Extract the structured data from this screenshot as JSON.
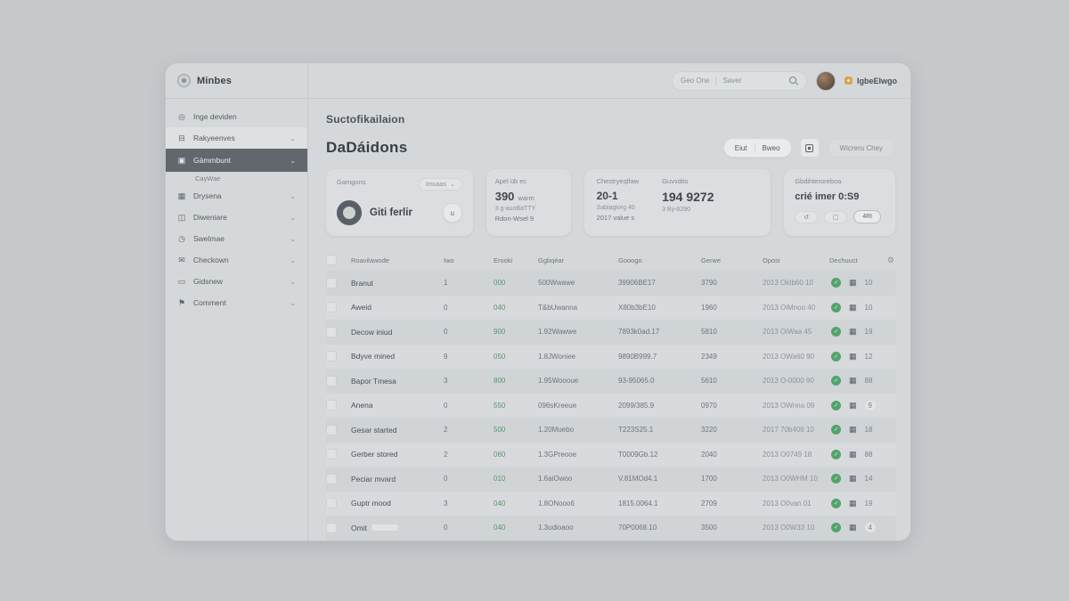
{
  "sidebar": {
    "logo": {
      "label": "Minbes"
    },
    "items": [
      {
        "label": "Inge deviden",
        "icon": "target-icon",
        "chevron": false,
        "state": "normal"
      },
      {
        "label": "Rakyeenves",
        "icon": "layers-icon",
        "chevron": true,
        "state": "highlight"
      },
      {
        "label": "Gämmbunt",
        "icon": "grid-icon",
        "chevron": true,
        "state": "selected"
      },
      {
        "label": "CayWae",
        "icon": null,
        "chevron": false,
        "state": "sub"
      },
      {
        "label": "Drysena",
        "icon": "image-icon",
        "chevron": true,
        "state": "normal"
      },
      {
        "label": "Diweniare",
        "icon": "briefcase-icon",
        "chevron": true,
        "state": "normal"
      },
      {
        "label": "Swelmae",
        "icon": "clock-icon",
        "chevron": true,
        "state": "normal"
      },
      {
        "label": "Checkown",
        "icon": "mail-icon",
        "chevron": true,
        "state": "normal"
      },
      {
        "label": "Gidsnew",
        "icon": "card-icon",
        "chevron": true,
        "state": "normal"
      },
      {
        "label": "Comment",
        "icon": "flag-icon",
        "chevron": true,
        "state": "normal"
      }
    ]
  },
  "header": {
    "search": {
      "segment1": "Geo One",
      "segment2": "Saver"
    },
    "user": {
      "name": "IgbeElwgo"
    }
  },
  "page": {
    "eyebrow": "Suctofikailaion",
    "title": "DaDáidons",
    "actions": {
      "split_left": "Eiut",
      "split_right": "Bweo",
      "ghost": "Wicreru Chey"
    }
  },
  "cards": {
    "selector": {
      "label": "Gamgons",
      "dropdown": "Imuaas",
      "value": "Giti ferlir",
      "button_glyph": "u"
    },
    "metric1": {
      "label": "Apel üb ec",
      "value": "390",
      "unit": "warm",
      "sub1": "3 g-auoBaTTY",
      "sub2": "Rdon-Wsel 9"
    },
    "metric2": {
      "label": "Chestryeqlfaw",
      "value": "20-1",
      "sub1": "Sabiagiorg 40",
      "sub2": "2017 value s"
    },
    "metric3": {
      "label": "Guvvdits",
      "value": "194 9272",
      "sub1": "3 By-6290"
    },
    "timer": {
      "label": "Gbdihteroreboa",
      "value": "crié imer 0:S9",
      "btn1_glyph": "↺",
      "btn2_glyph": "▢",
      "btn3": "4RI"
    }
  },
  "table": {
    "columns": [
      "Roavilawode",
      "Iwo",
      "Erooki",
      "Ggbqéar",
      "Gooogo",
      "Gerwe",
      "Oposi",
      "Dechuuct"
    ],
    "rows": [
      {
        "name": "Branut",
        "shimmer": false,
        "iwo": "1",
        "erooki": "000",
        "ggbqear": "500Wwawe",
        "gooogo": "39906BE17",
        "gerwe": "3790",
        "oposi": "2013 Oktb60 10",
        "count": "10",
        "pill": false
      },
      {
        "name": "Aweid",
        "shimmer": false,
        "iwo": "0",
        "erooki": "040",
        "ggbqear": "T&bUwanna",
        "gooogo": "X80b3bE10",
        "gerwe": "1960",
        "oposi": "2013 OiMnoo 40",
        "count": "10",
        "pill": false
      },
      {
        "name": "Decow iniud",
        "shimmer": false,
        "iwo": "0",
        "erooki": "900",
        "ggbqear": "1.92Wawwe",
        "gooogo": "7893k0ad.17",
        "gerwe": "5810",
        "oposi": "2013 OiWaa 45",
        "count": "19",
        "pill": false
      },
      {
        "name": "Bdyve mined",
        "shimmer": false,
        "iwo": "9",
        "erooki": "050",
        "ggbqear": "1.8JWoniee",
        "gooogo": "9890B999.7",
        "gerwe": "2349",
        "oposi": "2013 OWa60 90",
        "count": "12",
        "pill": false
      },
      {
        "name": "Bapor Tmesa",
        "shimmer": false,
        "iwo": "3",
        "erooki": "800",
        "ggbqear": "1.95Woooue",
        "gooogo": "93-95065.0",
        "gerwe": "5610",
        "oposi": "2013 O-0000 90",
        "count": "88",
        "pill": false
      },
      {
        "name": "Anena",
        "shimmer": false,
        "iwo": "0",
        "erooki": "550",
        "ggbqear": "096sKreeue",
        "gooogo": "2099/385.9",
        "gerwe": "0970",
        "oposi": "2013 OWnna 09",
        "count": "9",
        "pill": true
      },
      {
        "name": "Gesar started",
        "shimmer": false,
        "iwo": "2",
        "erooki": "500",
        "ggbqear": "1.20Muebo",
        "gooogo": "T223S25.1",
        "gerwe": "3220",
        "oposi": "2017 70b406 10",
        "count": "18",
        "pill": false
      },
      {
        "name": "Gerber stored",
        "shimmer": false,
        "iwo": "2",
        "erooki": "060",
        "ggbqear": "1.3GPreooe",
        "gooogo": "T0009Gb.12",
        "gerwe": "2040",
        "oposi": "2013 O0749 18",
        "count": "88",
        "pill": false
      },
      {
        "name": "Peciar mvard",
        "shimmer": false,
        "iwo": "0",
        "erooki": "010",
        "ggbqear": "1.6aiOwoo",
        "gooogo": "V.81MOd4.1",
        "gerwe": "1700",
        "oposi": "2013 O0WHM 10",
        "count": "14",
        "pill": false
      },
      {
        "name": "Guptr mood",
        "shimmer": false,
        "iwo": "3",
        "erooki": "040",
        "ggbqear": "1.8ONooo6",
        "gooogo": "1815.0064.1",
        "gerwe": "2709",
        "oposi": "2013 O0van 01",
        "count": "19",
        "pill": false
      },
      {
        "name": "Omit",
        "shimmer": true,
        "iwo": "0",
        "erooki": "040",
        "ggbqear": "1.3udioaoo",
        "gooogo": "70P0068.10",
        "gerwe": "3500",
        "oposi": "2013 O0W33 10",
        "count": "4",
        "pill": true
      }
    ],
    "status_glyph": "✓"
  },
  "colors": {
    "accent_dark": "#62676d",
    "status_green": "#52a46c",
    "green_text": "#55996b",
    "badge_orange": "#d7a44a"
  }
}
